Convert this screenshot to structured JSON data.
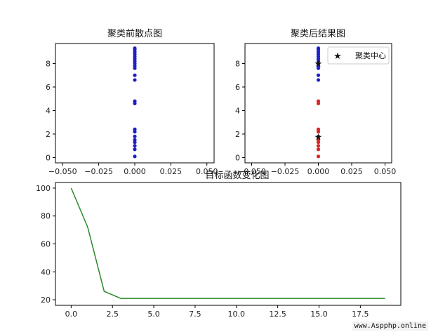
{
  "chart_data": [
    {
      "type": "scatter",
      "title": "聚类前散点图",
      "xlim": [
        -0.055,
        0.055
      ],
      "ylim": [
        -0.45,
        9.7
      ],
      "xticks": [
        -0.05,
        -0.025,
        0.0,
        0.025,
        0.05
      ],
      "xtick_labels": [
        "−0.050",
        "−0.025",
        "0.000",
        "0.025",
        "0.050"
      ],
      "yticks": [
        0,
        2,
        4,
        6,
        8
      ],
      "yticklabels": [
        "0",
        "2",
        "4",
        "6",
        "8"
      ],
      "series": [
        {
          "color": "#1f1fc8",
          "x": [
            0,
            0,
            0,
            0,
            0,
            0,
            0,
            0,
            0,
            0,
            0,
            0,
            0,
            0,
            0,
            0,
            0,
            0,
            0,
            0,
            0,
            0
          ],
          "y": [
            0.1,
            0.7,
            1.0,
            1.3,
            1.5,
            1.8,
            2.2,
            2.4,
            4.6,
            4.8,
            6.6,
            7.0,
            7.6,
            7.8,
            8.0,
            8.2,
            8.4,
            8.6,
            8.8,
            9.0,
            9.2,
            9.3
          ]
        }
      ]
    },
    {
      "type": "scatter",
      "title": "聚类后结果图",
      "xlim": [
        -0.055,
        0.055
      ],
      "ylim": [
        -0.45,
        9.7
      ],
      "xticks": [
        -0.05,
        -0.025,
        0.0,
        0.025,
        0.05
      ],
      "xtick_labels": [
        "−0.050",
        "−0.025",
        "0.000",
        "0.025",
        "0.050"
      ],
      "yticks": [
        0,
        2,
        4,
        6,
        8
      ],
      "yticklabels": [
        "0",
        "2",
        "4",
        "6",
        "8"
      ],
      "legend": {
        "label": "聚类中心",
        "position": "top-right"
      },
      "series": [
        {
          "color": "#1f1fc8",
          "x": [
            0,
            0,
            0,
            0,
            0,
            0,
            0,
            0,
            0,
            0,
            0,
            0
          ],
          "y": [
            6.6,
            7.0,
            7.6,
            7.8,
            8.0,
            8.2,
            8.4,
            8.6,
            8.8,
            9.0,
            9.2,
            9.3
          ]
        },
        {
          "color": "#d62728",
          "x": [
            0,
            0,
            0,
            0,
            0,
            0,
            0,
            0,
            0,
            0
          ],
          "y": [
            0.1,
            0.7,
            1.0,
            1.3,
            1.5,
            1.8,
            2.2,
            2.4,
            4.6,
            4.8
          ]
        }
      ],
      "centers": {
        "color": "#111111",
        "x": [
          0,
          0
        ],
        "y": [
          1.75,
          8.0
        ]
      }
    },
    {
      "type": "line",
      "title": "目标函数变化图",
      "xlim": [
        -0.95,
        19.95
      ],
      "ylim": [
        16.0,
        104.0
      ],
      "xticks": [
        0,
        2.5,
        5,
        7.5,
        10,
        12.5,
        15,
        17.5
      ],
      "xtick_labels": [
        "0.0",
        "2.5",
        "5.0",
        "7.5",
        "10.0",
        "12.5",
        "15.0",
        "17.5"
      ],
      "yticks": [
        20,
        40,
        60,
        80,
        100
      ],
      "yticklabels": [
        "20",
        "40",
        "60",
        "80",
        "100"
      ],
      "series": [
        {
          "color": "#2a8a2a",
          "x": [
            0,
            1,
            2,
            3,
            4,
            5,
            6,
            7,
            8,
            9,
            10,
            11,
            12,
            13,
            14,
            15,
            16,
            17,
            18,
            19
          ],
          "y": [
            100,
            72,
            26,
            21,
            21,
            21,
            21,
            21,
            21,
            21,
            21,
            21,
            21,
            21,
            21,
            21,
            21,
            21,
            21,
            21
          ]
        }
      ]
    }
  ],
  "watermark": "www.Aspphp.online"
}
